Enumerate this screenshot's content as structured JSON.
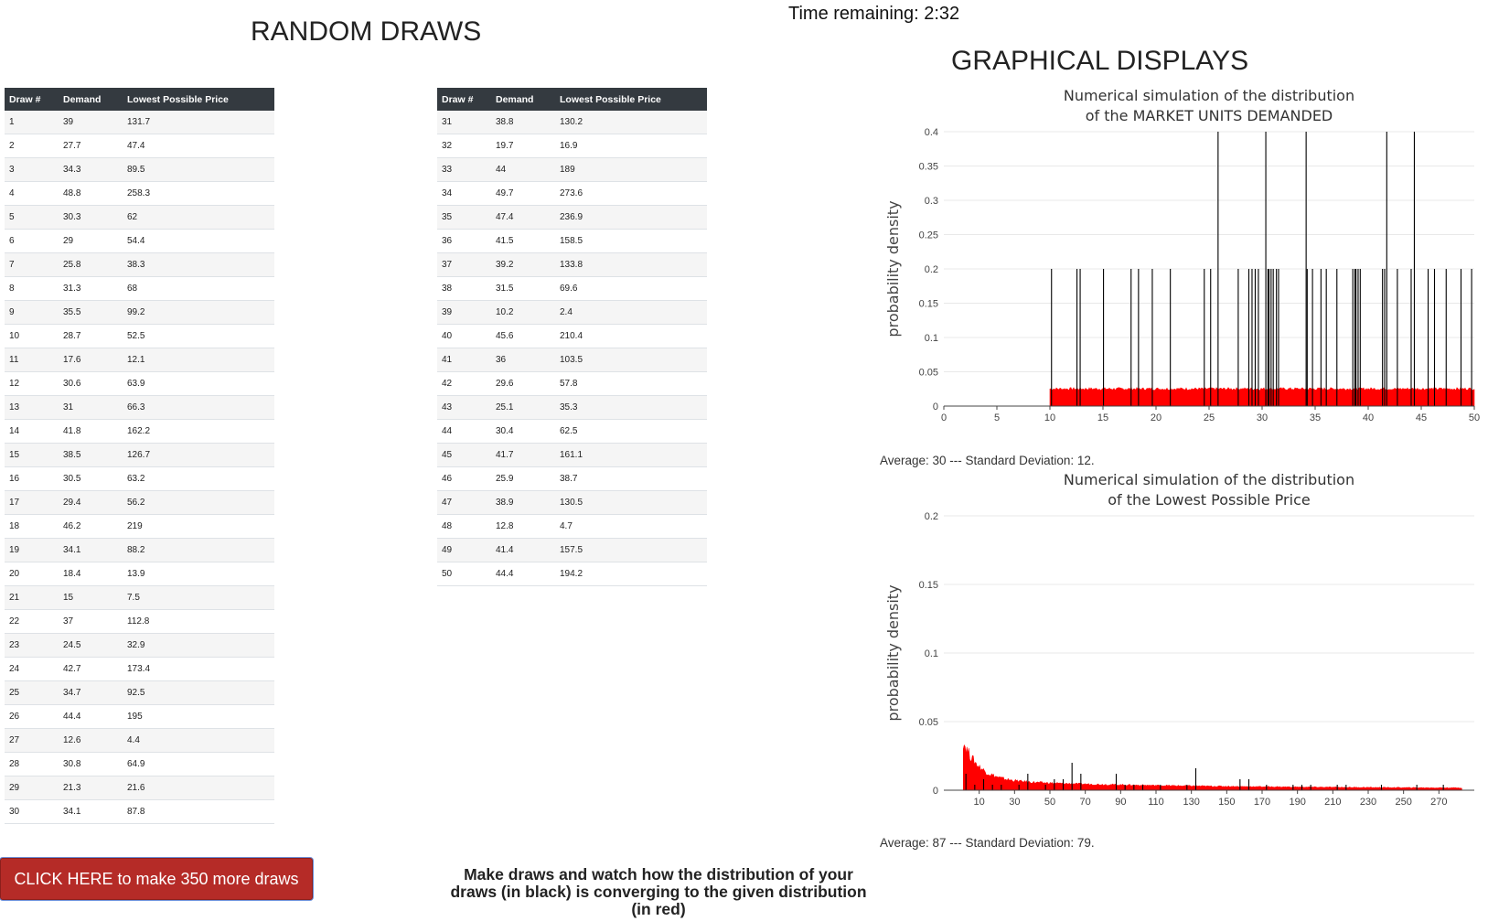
{
  "timer": {
    "label": "Time remaining:",
    "value": "2:32"
  },
  "left_heading": "RANDOM DRAWS",
  "right_heading": "GRAPHICAL DISPLAYS",
  "table": {
    "headers": [
      "Draw #",
      "Demand",
      "Lowest Possible Price"
    ],
    "rows_left": [
      [
        "1",
        "39",
        "131.7"
      ],
      [
        "2",
        "27.7",
        "47.4"
      ],
      [
        "3",
        "34.3",
        "89.5"
      ],
      [
        "4",
        "48.8",
        "258.3"
      ],
      [
        "5",
        "30.3",
        "62"
      ],
      [
        "6",
        "29",
        "54.4"
      ],
      [
        "7",
        "25.8",
        "38.3"
      ],
      [
        "8",
        "31.3",
        "68"
      ],
      [
        "9",
        "35.5",
        "99.2"
      ],
      [
        "10",
        "28.7",
        "52.5"
      ],
      [
        "11",
        "17.6",
        "12.1"
      ],
      [
        "12",
        "30.6",
        "63.9"
      ],
      [
        "13",
        "31",
        "66.3"
      ],
      [
        "14",
        "41.8",
        "162.2"
      ],
      [
        "15",
        "38.5",
        "126.7"
      ],
      [
        "16",
        "30.5",
        "63.2"
      ],
      [
        "17",
        "29.4",
        "56.2"
      ],
      [
        "18",
        "46.2",
        "219"
      ],
      [
        "19",
        "34.1",
        "88.2"
      ],
      [
        "20",
        "18.4",
        "13.9"
      ],
      [
        "21",
        "15",
        "7.5"
      ],
      [
        "22",
        "37",
        "112.8"
      ],
      [
        "23",
        "24.5",
        "32.9"
      ],
      [
        "24",
        "42.7",
        "173.4"
      ],
      [
        "25",
        "34.7",
        "92.5"
      ],
      [
        "26",
        "44.4",
        "195"
      ],
      [
        "27",
        "12.6",
        "4.4"
      ],
      [
        "28",
        "30.8",
        "64.9"
      ],
      [
        "29",
        "21.3",
        "21.6"
      ],
      [
        "30",
        "34.1",
        "87.8"
      ]
    ],
    "rows_right": [
      [
        "31",
        "38.8",
        "130.2"
      ],
      [
        "32",
        "19.7",
        "16.9"
      ],
      [
        "33",
        "44",
        "189"
      ],
      [
        "34",
        "49.7",
        "273.6"
      ],
      [
        "35",
        "47.4",
        "236.9"
      ],
      [
        "36",
        "41.5",
        "158.5"
      ],
      [
        "37",
        "39.2",
        "133.8"
      ],
      [
        "38",
        "31.5",
        "69.6"
      ],
      [
        "39",
        "10.2",
        "2.4"
      ],
      [
        "40",
        "45.6",
        "210.4"
      ],
      [
        "41",
        "36",
        "103.5"
      ],
      [
        "42",
        "29.6",
        "57.8"
      ],
      [
        "43",
        "25.1",
        "35.3"
      ],
      [
        "44",
        "30.4",
        "62.5"
      ],
      [
        "45",
        "41.7",
        "161.1"
      ],
      [
        "46",
        "25.9",
        "38.7"
      ],
      [
        "47",
        "38.9",
        "130.5"
      ],
      [
        "48",
        "12.8",
        "4.7"
      ],
      [
        "49",
        "41.4",
        "157.5"
      ],
      [
        "50",
        "44.4",
        "194.2"
      ]
    ]
  },
  "chart_data": [
    {
      "type": "bar",
      "title": "Numerical simulation of the distribution",
      "subtitle": "of the MARKET UNITS DEMANDED",
      "xlabel": "",
      "ylabel": "probability density",
      "xlim": [
        0,
        50
      ],
      "ylim": [
        0,
        0.4
      ],
      "xticks": [
        0,
        5,
        10,
        15,
        20,
        25,
        30,
        35,
        40,
        45,
        50
      ],
      "yticks": [
        0,
        0.05,
        0.1,
        0.15,
        0.2,
        0.25,
        0.3,
        0.35,
        0.4
      ],
      "grid": true,
      "theoretical": {
        "color": "#ff0000",
        "low": 10,
        "high": 50,
        "density": 0.025
      },
      "draws_color": "#000000",
      "bin_width": 0.1,
      "draws": [
        39,
        27.7,
        34.3,
        48.8,
        30.3,
        29,
        25.8,
        31.3,
        35.5,
        28.7,
        17.6,
        30.6,
        31,
        41.8,
        38.5,
        30.5,
        29.4,
        46.2,
        34.1,
        18.4,
        15,
        37,
        24.5,
        42.7,
        34.7,
        44.4,
        12.6,
        30.8,
        21.3,
        34.1,
        38.8,
        19.7,
        44,
        49.7,
        47.4,
        41.5,
        39.2,
        31.5,
        10.2,
        45.6,
        36,
        29.6,
        25.1,
        30.4,
        41.7,
        25.9,
        38.9,
        12.8,
        41.4,
        44.4
      ]
    },
    {
      "type": "bar",
      "title": "Numerical simulation of the distribution",
      "subtitle": "of the Lowest Possible Price",
      "xlabel": "",
      "ylabel": "probability density",
      "xlim": [
        -10,
        290
      ],
      "ylim": [
        0,
        0.2
      ],
      "xticks": [
        10,
        30,
        50,
        70,
        90,
        110,
        130,
        150,
        170,
        190,
        210,
        230,
        250,
        270
      ],
      "yticks": [
        0,
        0.05,
        0.1,
        0.15,
        0.2
      ],
      "grid": true,
      "theoretical": {
        "color": "#ff0000",
        "low": 1,
        "high": 283,
        "shape": "decreasing"
      },
      "draws_color": "#000000",
      "bin_width": 5,
      "draws": [
        131.7,
        47.4,
        89.5,
        258.3,
        62,
        54.4,
        38.3,
        68,
        99.2,
        52.5,
        12.1,
        63.9,
        66.3,
        162.2,
        126.7,
        63.2,
        56.2,
        219,
        88.2,
        13.9,
        7.5,
        112.8,
        32.9,
        173.4,
        92.5,
        195,
        4.4,
        64.9,
        21.6,
        87.8,
        130.2,
        16.9,
        189,
        273.6,
        236.9,
        158.5,
        133.8,
        69.6,
        2.4,
        210.4,
        103.5,
        57.8,
        35.3,
        62.5,
        161.1,
        38.7,
        130.5,
        4.7,
        157.5,
        194.2
      ]
    }
  ],
  "stats": {
    "demand": "Average: 30 --- Standard Deviation: 12.",
    "price": "Average: 87 --- Standard Deviation: 79."
  },
  "button_label": "CLICK HERE to make 350 more draws",
  "note": "Make draws and watch how the distribution of your draws (in black) is converging to the given distribution (in red)"
}
